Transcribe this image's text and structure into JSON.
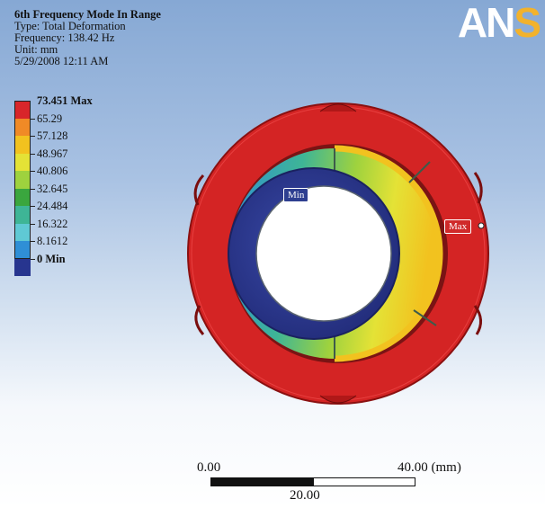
{
  "header": {
    "title": "6th Frequency Mode In Range",
    "type": "Type: Total Deformation",
    "frequency": "Frequency: 138.42 Hz",
    "unit": "Unit: mm",
    "date": "5/29/2008 12:11 AM"
  },
  "logo": {
    "main": "AN",
    "accent": "S"
  },
  "legend": [
    {
      "label": "73.451 Max",
      "color": "#d8262a",
      "bold": true
    },
    {
      "label": "65.29",
      "color": "#f08a26",
      "bold": false
    },
    {
      "label": "57.128",
      "color": "#f2c21f",
      "bold": false
    },
    {
      "label": "48.967",
      "color": "#e4e236",
      "bold": false
    },
    {
      "label": "40.806",
      "color": "#9ed23e",
      "bold": false
    },
    {
      "label": "32.645",
      "color": "#3aa63e",
      "bold": false
    },
    {
      "label": "24.484",
      "color": "#3eb596",
      "bold": false
    },
    {
      "label": "16.322",
      "color": "#5fc9d4",
      "bold": false
    },
    {
      "label": "8.1612",
      "color": "#2f8fd6",
      "bold": false
    },
    {
      "label": "0 Min",
      "color": "#27358f",
      "bold": true
    }
  ],
  "probes": {
    "min": "Min",
    "max": "Max"
  },
  "scale": {
    "left": "0.00",
    "right": "40.00 (mm)",
    "middle": "20.00"
  }
}
